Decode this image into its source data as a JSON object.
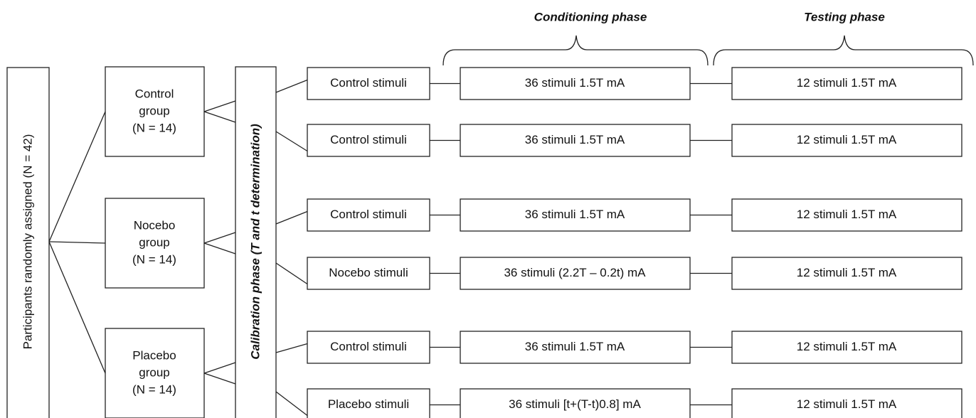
{
  "phases": {
    "conditioning": "Conditioning phase",
    "testing": "Testing phase"
  },
  "participants": "Participants randomly assigned (N = 42)",
  "calibration": "Calibration phase  (T and t determination)",
  "groups": [
    {
      "lines": [
        "Control",
        "group",
        "(N = 14)"
      ]
    },
    {
      "lines": [
        "Nocebo",
        "group",
        "(N = 14)"
      ]
    },
    {
      "lines": [
        "Placebo",
        "group",
        "(N = 14)"
      ]
    }
  ],
  "rows": [
    {
      "stimulus": "Control stimuli",
      "conditioning": "36 stimuli 1.5T mA",
      "testing": "12 stimuli 1.5T mA"
    },
    {
      "stimulus": "Control stimuli",
      "conditioning": "36 stimuli 1.5T mA",
      "testing": "12 stimuli 1.5T mA"
    },
    {
      "stimulus": "Control stimuli",
      "conditioning": "36 stimuli 1.5T mA",
      "testing": "12 stimuli 1.5T mA"
    },
    {
      "stimulus": "Nocebo stimuli",
      "conditioning": "36 stimuli (2.2T – 0.2t) mA",
      "testing": "12 stimuli 1.5T mA"
    },
    {
      "stimulus": "Control stimuli",
      "conditioning": "36 stimuli 1.5T mA",
      "testing": "12 stimuli 1.5T mA"
    },
    {
      "stimulus": "Placebo stimuli",
      "conditioning": "36 stimuli [t+(T-t)0.8] mA",
      "testing": "12 stimuli 1.5T mA"
    }
  ]
}
